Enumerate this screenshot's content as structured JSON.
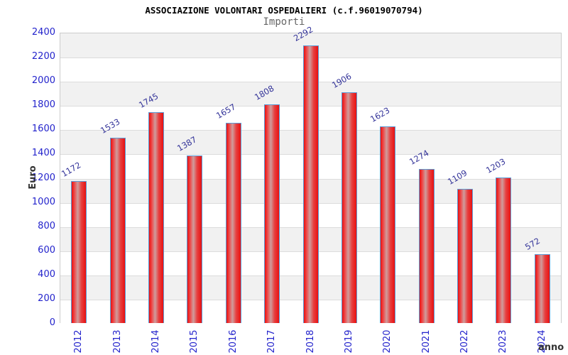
{
  "header": {
    "title": "ASSOCIAZIONE VOLONTARI OSPEDALIERI (c.f.96019070794)",
    "subtitle": "Importi"
  },
  "chart_data": {
    "type": "bar",
    "title": "ASSOCIAZIONE VOLONTARI OSPEDALIERI (c.f.96019070794)",
    "subtitle": "Importi",
    "categories": [
      "2012",
      "2013",
      "2014",
      "2015",
      "2016",
      "2017",
      "2018",
      "2019",
      "2020",
      "2021",
      "2022",
      "2023",
      "2024"
    ],
    "values": [
      1172,
      1533,
      1745,
      1387,
      1657,
      1808,
      2292,
      1906,
      1623,
      1274,
      1109,
      1203,
      572
    ],
    "xlabel": "anno",
    "ylabel": "Euro",
    "ylim": [
      0,
      2400
    ],
    "ytick_step": 200,
    "grid": true,
    "legend_position": "none",
    "colors": {
      "bar_fill": "#e81111",
      "bar_highlight": "#cf9d9d",
      "bar_border": "#5b9bd5",
      "tick_label": "#2323cc",
      "value_label": "#333399",
      "band_gray": "#f1f1f1",
      "band_white": "#ffffff",
      "gridline": "#dcdcdc",
      "axis_title": "#333333",
      "title": "#000000",
      "subtitle": "#666666"
    }
  }
}
